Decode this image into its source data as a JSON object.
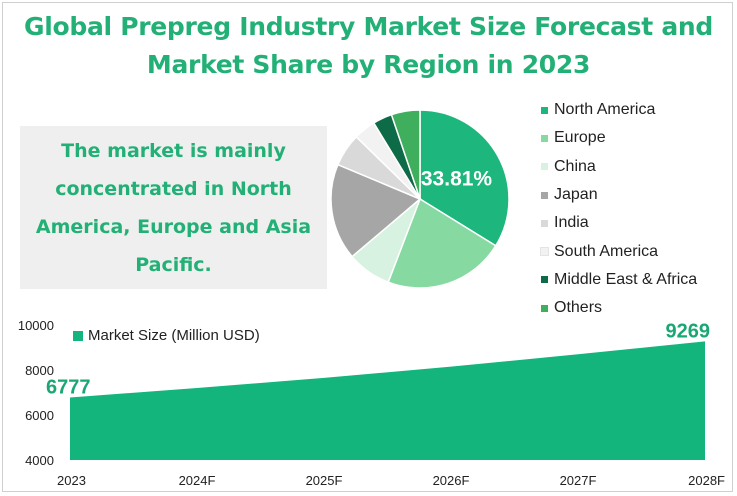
{
  "title": "Global Prepreg Industry Market Size Forecast and Market Share by Region in 2023",
  "note": "The market is mainly concentrated in North America, Europe and Asia Pacific.",
  "chart_data": [
    {
      "type": "pie",
      "label": "33.81%",
      "categories": [
        "North America",
        "Europe",
        "China",
        "Japan",
        "India",
        "South America",
        "Middle East & Africa",
        "Others"
      ],
      "values": [
        33.81,
        22.0,
        8.0,
        17.5,
        6.0,
        4.0,
        3.5,
        5.19
      ],
      "colors": [
        "#1db67c",
        "#87d9a2",
        "#d7f2e1",
        "#a6a6a6",
        "#d9d9d9",
        "#f2f2f2",
        "#0e6b47",
        "#3fae5d"
      ],
      "legend_position": "right"
    },
    {
      "type": "area",
      "series": [
        {
          "name": "Market Size (Million USD)",
          "values": [
            6777,
            7200,
            7650,
            8150,
            8700,
            9269
          ]
        }
      ],
      "x": [
        "2023",
        "2024F",
        "2025F",
        "2026F",
        "2027F",
        "2028F"
      ],
      "data_labels": [
        "6777",
        "9269"
      ],
      "y_ticks": [
        "10000",
        "8000",
        "6000",
        "4000"
      ],
      "ylim": [
        4000,
        10000
      ],
      "color": "#14b47d",
      "label_color": "#1aa774",
      "grid": false,
      "legend_position": "top-left"
    }
  ]
}
